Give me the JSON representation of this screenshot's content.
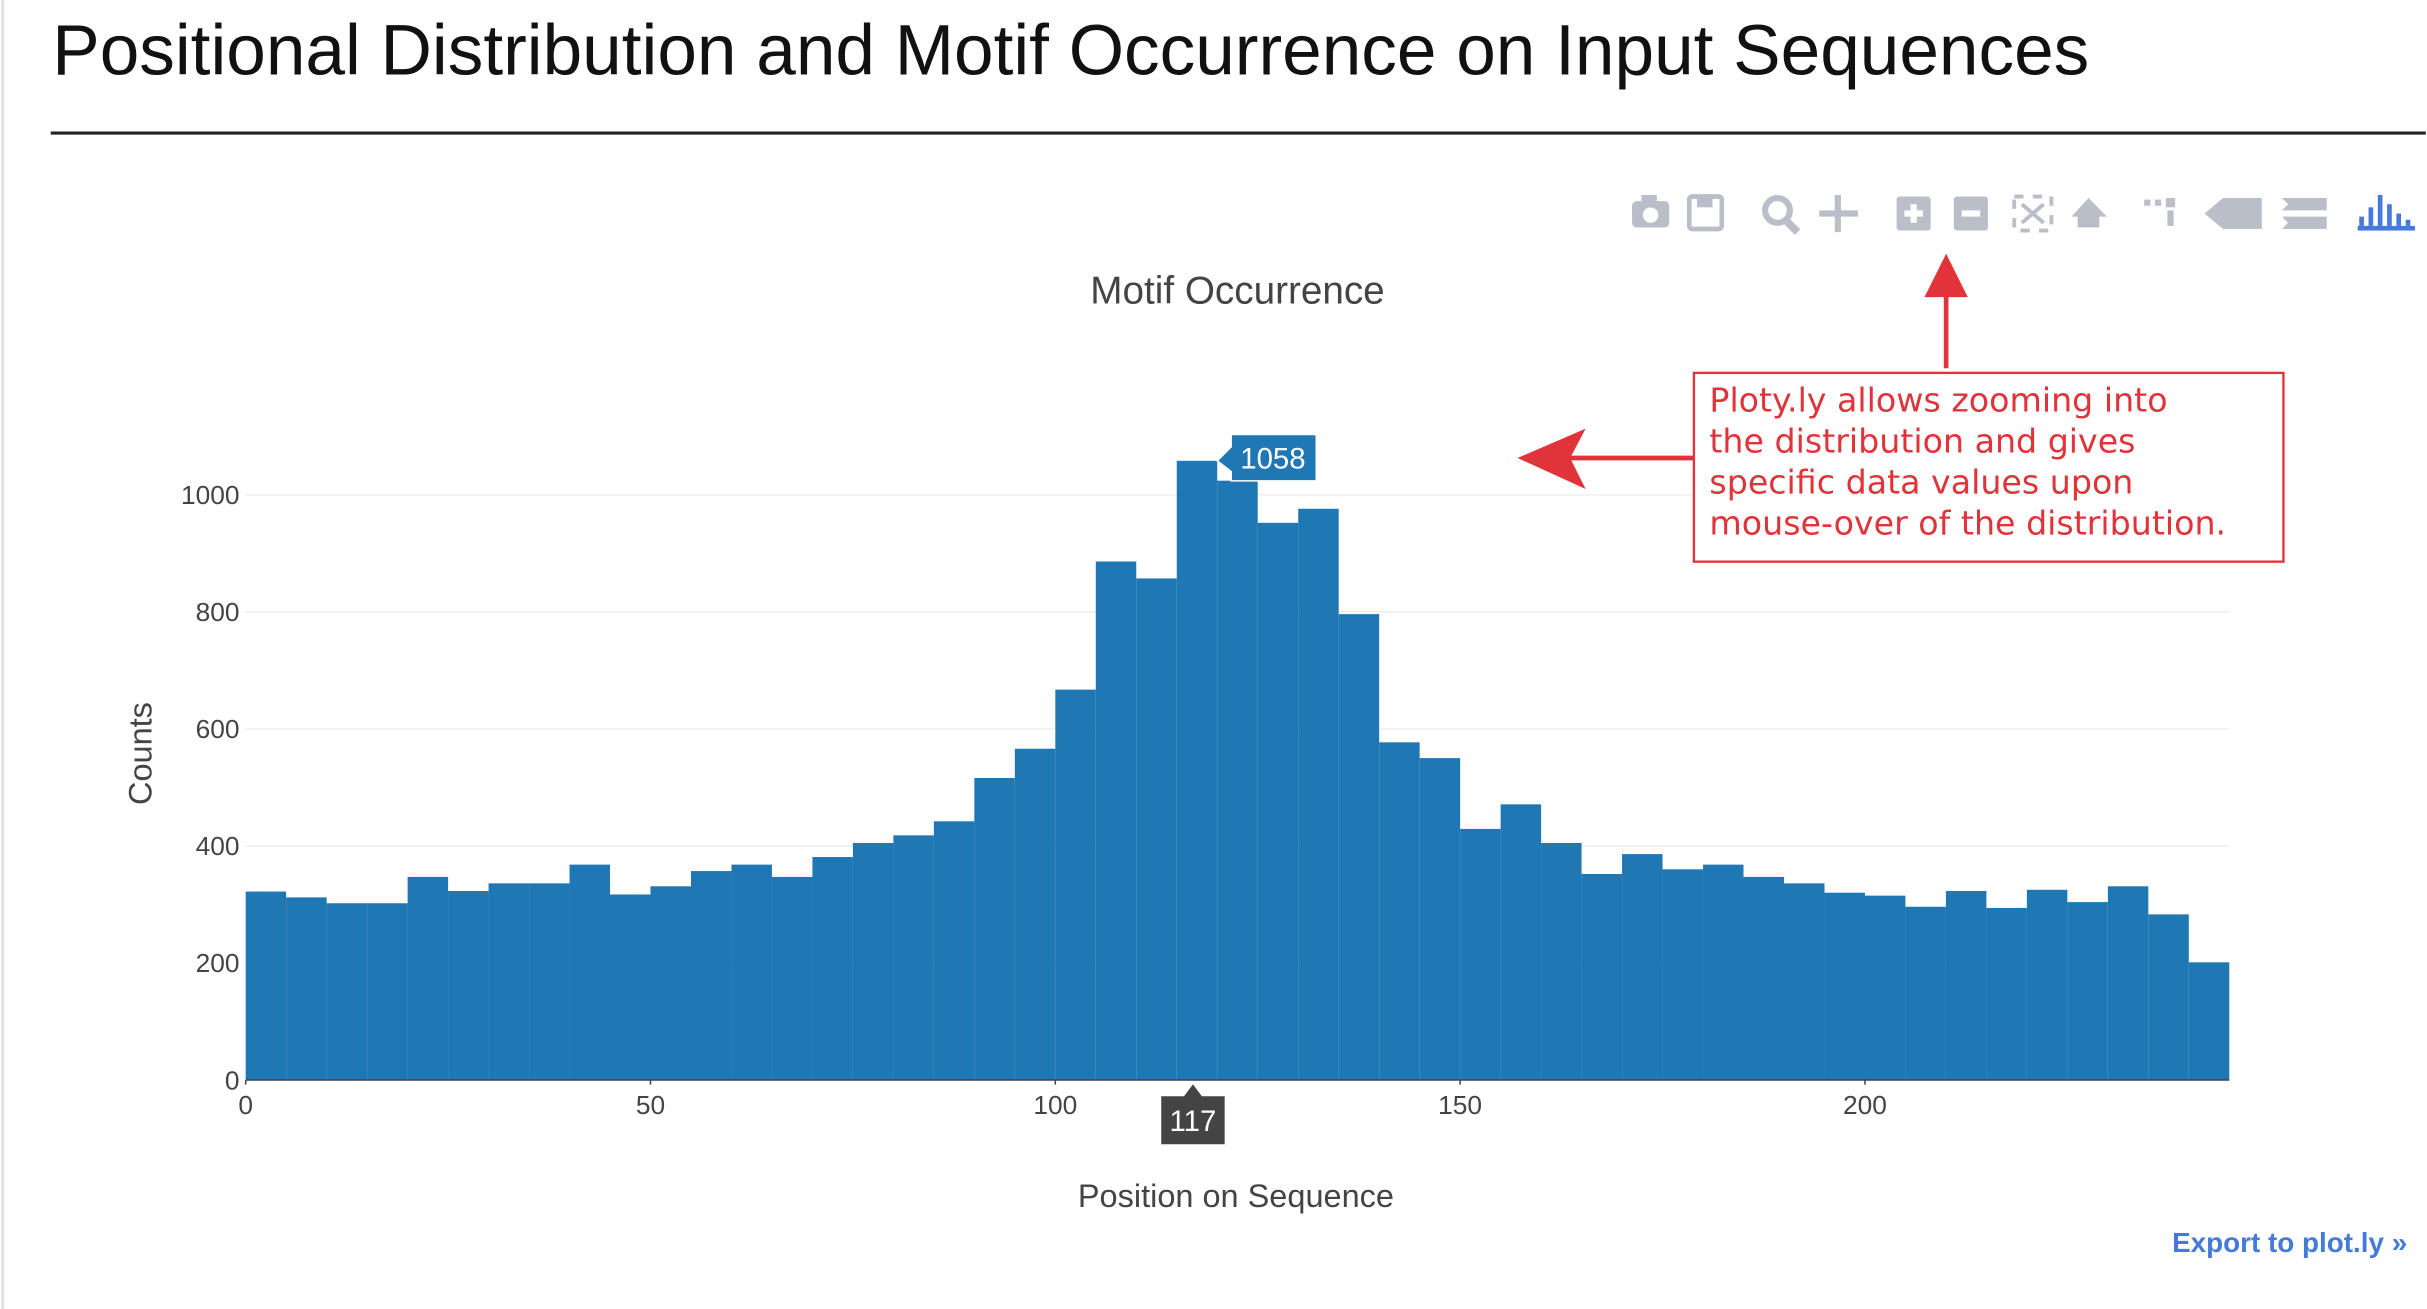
{
  "header": {
    "title": "Positional Distribution and Motif Occurrence on Input Sequences"
  },
  "chart_data": {
    "type": "histogram",
    "title": "Motif Occurrence",
    "x_label": "Position on Sequence",
    "y_label": "Counts",
    "color": "#1f77b4",
    "bins": [
      0,
      5,
      10,
      15,
      20,
      25,
      30,
      35,
      40,
      45,
      50,
      55,
      60,
      65,
      70,
      75,
      80,
      85,
      90,
      95,
      100,
      105,
      110,
      115,
      120,
      125,
      130,
      135,
      140,
      145,
      150,
      155,
      160,
      165,
      170,
      175,
      180,
      185,
      190,
      195,
      200,
      205,
      210,
      215,
      220,
      225,
      230,
      235,
      240,
      245
    ],
    "values": [
      322,
      312,
      302,
      302,
      347,
      323,
      336,
      336,
      368,
      317,
      331,
      357,
      368,
      347,
      381,
      405,
      418,
      442,
      516,
      566,
      667,
      886,
      857,
      1058,
      1024,
      952,
      976,
      796,
      577,
      550,
      429,
      471,
      405,
      352,
      386,
      360,
      368,
      347,
      336,
      320,
      315,
      296,
      323,
      294,
      325,
      304,
      331,
      283,
      201
    ],
    "xlim": [
      0,
      245
    ],
    "xticks": [
      0,
      50,
      100,
      150,
      200
    ],
    "ylim": [
      0,
      1113
    ],
    "yticks": [
      0,
      200,
      400,
      600,
      800,
      1000
    ],
    "grid": true,
    "hover": {
      "bin": 23,
      "x": 117
    }
  },
  "annotation": {
    "lines": [
      "Ploty.ly allows  zooming into",
      "the distribution and gives",
      "specific data values upon",
      "mouse-over of the distribution."
    ]
  },
  "export_link": "Export to plot.ly »"
}
